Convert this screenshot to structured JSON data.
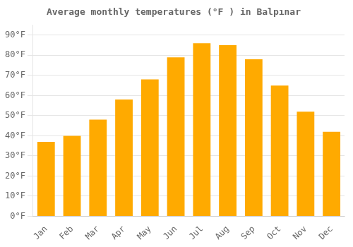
{
  "chart_data": {
    "type": "bar",
    "title": "Average monthly temperatures (°F ) in Balpınar",
    "categories": [
      "Jan",
      "Feb",
      "Mar",
      "Apr",
      "May",
      "Jun",
      "Jul",
      "Aug",
      "Sep",
      "Oct",
      "Nov",
      "Dec"
    ],
    "values": [
      37,
      40,
      48,
      58,
      68,
      79,
      86,
      85,
      78,
      65,
      52,
      42
    ],
    "color": "#FFAA00",
    "ylim": [
      0,
      95
    ],
    "yticks": [
      {
        "value": 0,
        "label": "0°F"
      },
      {
        "value": 10,
        "label": "10°F"
      },
      {
        "value": 20,
        "label": "20°F"
      },
      {
        "value": 30,
        "label": "30°F"
      },
      {
        "value": 40,
        "label": "40°F"
      },
      {
        "value": 50,
        "label": "50°F"
      },
      {
        "value": 60,
        "label": "60°F"
      },
      {
        "value": 70,
        "label": "70°F"
      },
      {
        "value": 80,
        "label": "80°F"
      },
      {
        "value": 90,
        "label": "90°F"
      }
    ],
    "grid": true
  }
}
